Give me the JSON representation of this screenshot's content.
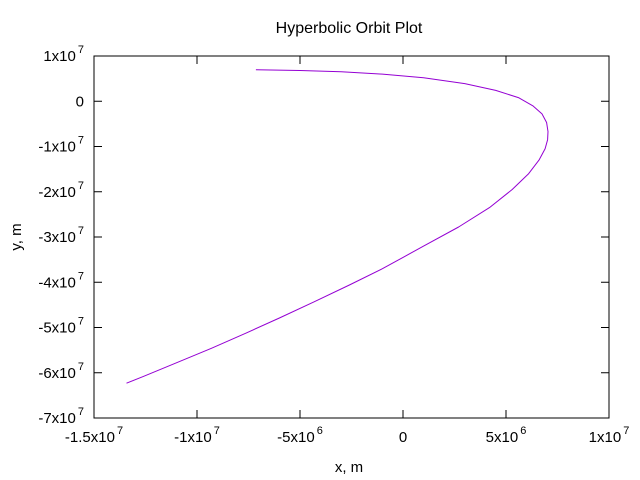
{
  "chart_data": {
    "type": "line",
    "title": "Hyperbolic Orbit Plot",
    "xlabel": "x, m",
    "ylabel": "y, m",
    "xlim": [
      -15000000,
      10000000
    ],
    "ylim": [
      -70000000,
      10000000
    ],
    "grid": false,
    "x_ticks": [
      {
        "value": -15000000,
        "base": "-1.5x10",
        "exp": "7"
      },
      {
        "value": -10000000,
        "base": "-1x10",
        "exp": "7"
      },
      {
        "value": -5000000,
        "base": "-5x10",
        "exp": "6"
      },
      {
        "value": 0,
        "base": "0",
        "exp": ""
      },
      {
        "value": 5000000,
        "base": "5x10",
        "exp": "6"
      },
      {
        "value": 10000000,
        "base": "1x10",
        "exp": "7"
      }
    ],
    "y_ticks": [
      {
        "value": 10000000,
        "base": "1x10",
        "exp": "7"
      },
      {
        "value": 0,
        "base": "0",
        "exp": ""
      },
      {
        "value": -10000000,
        "base": "-1x10",
        "exp": "7"
      },
      {
        "value": -20000000,
        "base": "-2x10",
        "exp": "7"
      },
      {
        "value": -30000000,
        "base": "-3x10",
        "exp": "7"
      },
      {
        "value": -40000000,
        "base": "-4x10",
        "exp": "7"
      },
      {
        "value": -50000000,
        "base": "-5x10",
        "exp": "7"
      },
      {
        "value": -60000000,
        "base": "-6x10",
        "exp": "7"
      },
      {
        "value": -70000000,
        "base": "-7x10",
        "exp": "7"
      }
    ],
    "series": [
      {
        "color": "#9400d3",
        "x": [
          -7140000,
          -5000000,
          -3000000,
          -1000000,
          1000000,
          3000000,
          4500000,
          5600000,
          6300000,
          6750000,
          6970000,
          7040000,
          7020000,
          6900000,
          6600000,
          6100000,
          5300000,
          4200000,
          2700000,
          1000000,
          0,
          -1000000,
          -2600000,
          -4300000,
          -6000000,
          -7600000,
          -9300000,
          -11000000,
          -12600000,
          -13420000
        ],
        "y": [
          6950000,
          6800000,
          6500000,
          6000000,
          5200000,
          3900000,
          2400000,
          800000,
          -1000000,
          -2800000,
          -4700000,
          -6700000,
          -8500000,
          -10500000,
          -13000000,
          -16000000,
          -19500000,
          -23500000,
          -27800000,
          -32000000,
          -34500000,
          -37000000,
          -40600000,
          -44300000,
          -47900000,
          -51200000,
          -54600000,
          -57800000,
          -60800000,
          -62300000
        ]
      }
    ]
  }
}
